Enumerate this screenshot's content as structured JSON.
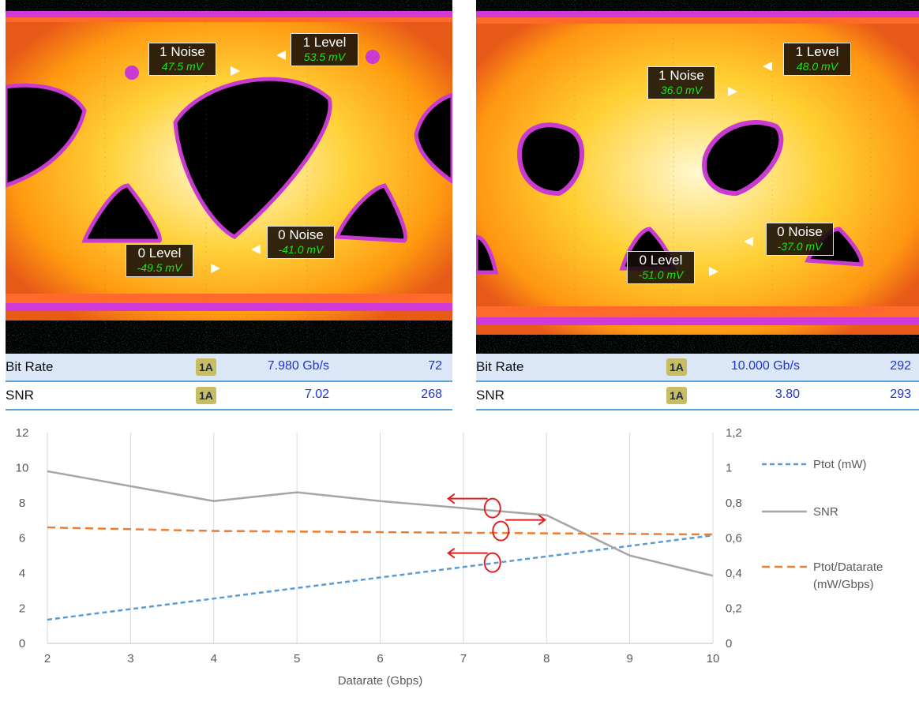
{
  "eye_left": {
    "markers": [
      {
        "label": "1 Noise",
        "value": "47.5 mV"
      },
      {
        "label": "1 Level",
        "value": "53.5 mV"
      },
      {
        "label": "0 Noise",
        "value": "-41.0 mV"
      },
      {
        "label": "0 Level",
        "value": "-49.5 mV"
      }
    ],
    "table": [
      {
        "name": "Bit Rate",
        "badge": "1A",
        "value": "7.980 Gb/s",
        "count": "72"
      },
      {
        "name": "SNR",
        "badge": "1A",
        "value": "7.02",
        "count": "268"
      }
    ]
  },
  "eye_right": {
    "markers": [
      {
        "label": "1 Noise",
        "value": "36.0 mV"
      },
      {
        "label": "1 Level",
        "value": "48.0 mV"
      },
      {
        "label": "0 Noise",
        "value": "-37.0 mV"
      },
      {
        "label": "0 Level",
        "value": "-51.0 mV"
      }
    ],
    "table": [
      {
        "name": "Bit Rate",
        "badge": "1A",
        "value": "10.000 Gb/s",
        "count": "292"
      },
      {
        "name": "SNR",
        "badge": "1A",
        "value": "3.80",
        "count": "293"
      }
    ]
  },
  "chart_data": {
    "type": "line",
    "title": "",
    "xlabel": "Datarate (Gbps)",
    "ylabel": "",
    "y2label": "",
    "xlim": [
      2,
      10
    ],
    "ylim": [
      0,
      12
    ],
    "y2lim": [
      0,
      1.2
    ],
    "x_ticks": [
      "2",
      "3",
      "4",
      "5",
      "6",
      "7",
      "8",
      "9",
      "10"
    ],
    "y_ticks": [
      "0",
      "2",
      "4",
      "6",
      "8",
      "10",
      "12"
    ],
    "y2_ticks": [
      "0",
      "0,2",
      "0,4",
      "0,6",
      "0,8",
      "1",
      "1,2"
    ],
    "grid": "vertical",
    "legend_position": "right",
    "series": [
      {
        "name": "Ptot (mW)",
        "axis": "left",
        "style": "dashed",
        "color": "#5b9bd5",
        "x": [
          2,
          10
        ],
        "values": [
          1.35,
          6.15
        ]
      },
      {
        "name": "SNR",
        "axis": "left",
        "style": "solid",
        "color": "#a5a5a5",
        "x": [
          2,
          3,
          4,
          5,
          6,
          7,
          8,
          9,
          10
        ],
        "values": [
          9.8,
          8.95,
          8.1,
          8.6,
          8.1,
          7.7,
          7.3,
          5.0,
          3.85
        ]
      },
      {
        "name": "Ptot/Datarate\n(mW/Gbps)",
        "axis": "right",
        "style": "dashed",
        "color": "#ed7d31",
        "x": [
          2,
          4,
          10
        ],
        "values": [
          0.66,
          0.64,
          0.62
        ]
      }
    ],
    "annotation_color": "#e02020"
  }
}
